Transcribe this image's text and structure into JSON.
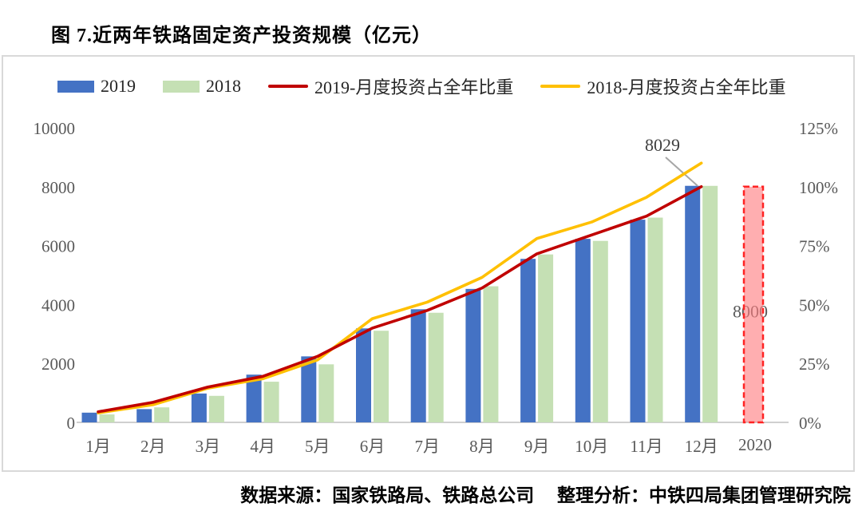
{
  "page": {
    "title": "图 7.近两年铁路固定资产投资规模（亿元）",
    "footer": "数据来源：国家铁路局、铁路总公司　 整理分析：中铁四局集团管理研究院"
  },
  "chart_data": {
    "type": "bar+line combo",
    "title": "图 7.近两年铁路固定资产投资规模（亿元）",
    "categories": [
      "1月",
      "2月",
      "3月",
      "4月",
      "5月",
      "6月",
      "7月",
      "8月",
      "9月",
      "10月",
      "11月",
      "12月"
    ],
    "series": [
      {
        "name": "2019",
        "type": "bar",
        "axis": "left",
        "swatch": "rect",
        "color": "#4472C4",
        "values": [
          330,
          450,
          980,
          1620,
          2240,
          3190,
          3840,
          4530,
          5550,
          6230,
          6880,
          8029
        ]
      },
      {
        "name": "2018",
        "type": "bar",
        "axis": "left",
        "swatch": "rect",
        "color": "#C5E0B4",
        "values": [
          270,
          510,
          900,
          1380,
          1970,
          3110,
          3720,
          4620,
          5700,
          6160,
          6950,
          8028
        ]
      },
      {
        "name": "2019-月度投资占全年比重",
        "type": "line",
        "axis": "right",
        "swatch": "line",
        "color": "#C00000",
        "values": [
          4.5,
          8.5,
          15,
          19.5,
          28,
          40,
          47.5,
          57,
          71.5,
          79.5,
          87.5,
          100
        ]
      },
      {
        "name": "2018-月度投资占全年比重",
        "type": "line",
        "axis": "right",
        "swatch": "line",
        "color": "#FFC000",
        "values": [
          4,
          7.5,
          14.5,
          18.5,
          26.5,
          44,
          51,
          61.5,
          78,
          85,
          95.5,
          110
        ]
      }
    ],
    "left_axis": {
      "min": 0,
      "max": 10000,
      "ticks": [
        "0",
        "2000",
        "4000",
        "6000",
        "8000",
        "10000"
      ]
    },
    "right_axis": {
      "min": 0,
      "max": 125,
      "ticks": [
        "0%",
        "25%",
        "50%",
        "75%",
        "100%",
        "125%"
      ]
    },
    "projection": {
      "category": "2020",
      "value": 8000,
      "value_label": "8000",
      "fill": "#FF7C80",
      "border": "#FF2222"
    },
    "annotation": {
      "text": "8029",
      "series": "2019",
      "category": "12月"
    },
    "colors": {
      "axis_text": "#595959",
      "baseline": "#BFBFBF",
      "callout_line": "#A6A6A6",
      "annotation_text": "#3F3F3F",
      "box_border": "#D9D9D9"
    },
    "legend_position": "top",
    "grid": false
  }
}
